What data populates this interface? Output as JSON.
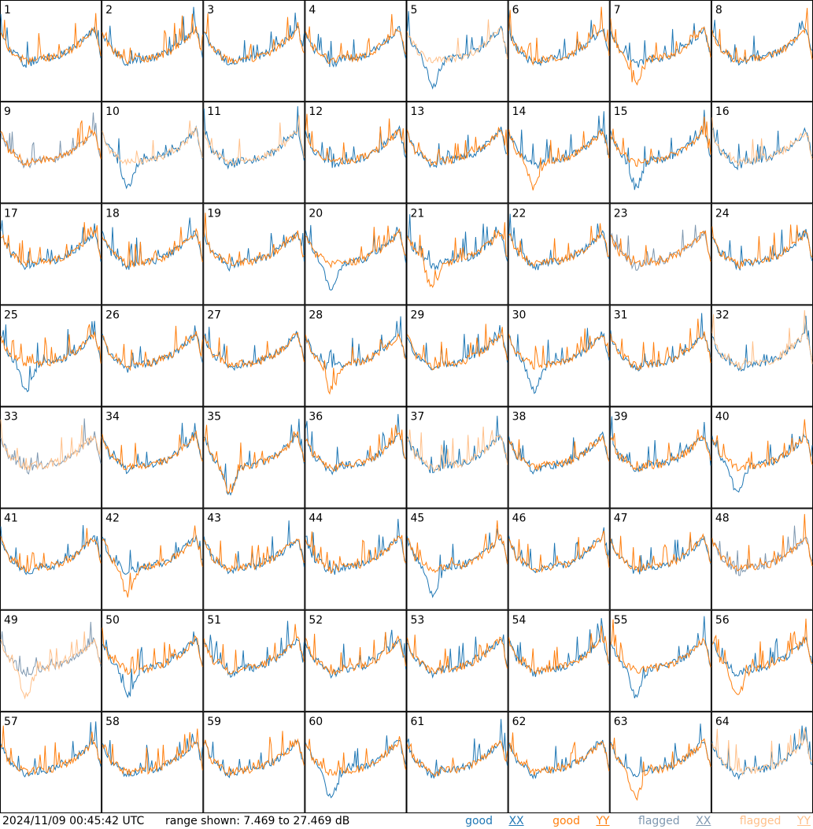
{
  "chart_data": {
    "type": "line",
    "panel_count": 64,
    "panel_labels": [
      "1",
      "2",
      "3",
      "4",
      "5",
      "6",
      "7",
      "8",
      "9",
      "10",
      "11",
      "12",
      "13",
      "14",
      "15",
      "16",
      "17",
      "18",
      "19",
      "20",
      "21",
      "22",
      "23",
      "24",
      "25",
      "26",
      "27",
      "28",
      "29",
      "30",
      "31",
      "32",
      "33",
      "34",
      "35",
      "36",
      "37",
      "38",
      "39",
      "40",
      "41",
      "42",
      "43",
      "44",
      "45",
      "46",
      "47",
      "48",
      "49",
      "50",
      "51",
      "52",
      "53",
      "54",
      "55",
      "56",
      "57",
      "58",
      "59",
      "60",
      "61",
      "62",
      "63",
      "64"
    ],
    "range_min_db": 7.469,
    "range_max_db": 27.469,
    "series": [
      {
        "name": "good XX",
        "color": "#1f77b4"
      },
      {
        "name": "good YY",
        "color": "#ff7f0e"
      },
      {
        "name": "flagged XX",
        "color": "#7f98b0"
      },
      {
        "name": "flagged YY",
        "color": "#ffc08a"
      }
    ],
    "flagged_xx_panels": [
      9,
      23,
      33,
      48,
      49
    ],
    "flagged_yy_panels": [
      5,
      10,
      11,
      16,
      32,
      33,
      37,
      49,
      64
    ]
  },
  "footer": {
    "timestamp": "2024/11/09 00:45:42 UTC",
    "range": "range shown: 7.469 to 27.469 dB",
    "legend": [
      {
        "label": "good",
        "pol": "XX",
        "color": "#1f77b4"
      },
      {
        "label": "good",
        "pol": "YY",
        "color": "#ff7f0e"
      },
      {
        "label": "flagged",
        "pol": "XX",
        "color": "#7f98b0"
      },
      {
        "label": "flagged",
        "pol": "YY",
        "color": "#ffc08a"
      }
    ]
  }
}
